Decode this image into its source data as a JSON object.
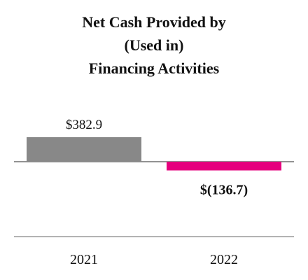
{
  "chart_data": {
    "type": "bar",
    "title_lines": [
      "Net Cash Provided by",
      "(Used in)",
      "Financing Activities"
    ],
    "categories": [
      "2021",
      "2022"
    ],
    "values": [
      382.9,
      -136.7
    ],
    "value_labels": [
      "$382.9",
      "$(136.7)"
    ],
    "colors": [
      "#888888",
      "#e6007e"
    ],
    "value_label_bold": [
      false,
      true
    ],
    "ylim": [
      -136.7,
      382.9
    ],
    "grid": false,
    "legend": "none"
  },
  "colors": {
    "zero_line": "#6e6e6e",
    "baseline": "#9a9a9a",
    "text": "#111111"
  }
}
